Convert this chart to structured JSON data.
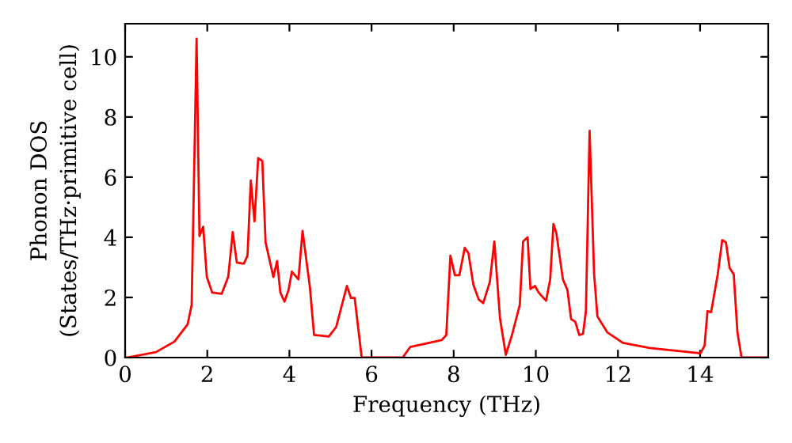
{
  "chart_data": {
    "type": "line",
    "xlabel": "Frequency (THz)",
    "ylabel": "Phonon DOS\n(States/THz·primitive cell)",
    "x": [
      0.04,
      0.75,
      1.2,
      1.52,
      1.62,
      1.74,
      1.81,
      1.9,
      1.99,
      2.12,
      2.35,
      2.51,
      2.62,
      2.72,
      2.89,
      2.98,
      3.06,
      3.15,
      3.24,
      3.34,
      3.42,
      3.61,
      3.7,
      3.78,
      3.88,
      3.98,
      4.06,
      4.22,
      4.32,
      4.5,
      4.6,
      4.96,
      5.14,
      5.4,
      5.5,
      5.59,
      5.76,
      6.76,
      6.94,
      7.71,
      7.82,
      7.92,
      8.03,
      8.14,
      8.27,
      8.36,
      8.48,
      8.61,
      8.72,
      8.88,
      8.99,
      9.13,
      9.27,
      9.42,
      9.61,
      9.69,
      9.8,
      9.87,
      9.98,
      10.07,
      10.25,
      10.35,
      10.43,
      10.5,
      10.66,
      10.77,
      10.86,
      10.96,
      11.06,
      11.15,
      11.22,
      11.31,
      11.42,
      11.5,
      11.74,
      12.12,
      12.77,
      14.01,
      14.11,
      14.18,
      14.27,
      14.43,
      14.54,
      14.63,
      14.72,
      14.82,
      14.91,
      15.01,
      15.66
    ],
    "series": [
      {
        "color": "#ff0000",
        "values": [
          0,
          0.18,
          0.53,
          1.1,
          1.75,
          10.6,
          4.04,
          4.35,
          2.68,
          2.16,
          2.12,
          2.68,
          4.17,
          3.16,
          3.12,
          3.39,
          5.89,
          4.53,
          6.63,
          6.54,
          3.83,
          2.68,
          3.21,
          2.16,
          1.86,
          2.25,
          2.86,
          2.6,
          4.21,
          2.33,
          0.75,
          0.7,
          1.02,
          2.38,
          1.98,
          1.98,
          0,
          0,
          0.35,
          0.58,
          0.75,
          3.39,
          2.74,
          2.74,
          3.65,
          3.47,
          2.42,
          1.93,
          1.81,
          2.51,
          3.86,
          1.28,
          0.09,
          0.75,
          1.75,
          3.86,
          4.0,
          2.28,
          2.38,
          2.16,
          1.89,
          2.6,
          4.44,
          4.14,
          2.6,
          2.25,
          1.28,
          1.19,
          0.75,
          0.79,
          1.54,
          7.54,
          2.77,
          1.37,
          0.84,
          0.49,
          0.32,
          0.14,
          0.4,
          1.54,
          1.51,
          2.77,
          3.91,
          3.83,
          2.98,
          2.77,
          0.84,
          0,
          0
        ]
      }
    ],
    "xlim": [
      0,
      15.66
    ],
    "ylim": [
      0,
      11.1
    ],
    "xticks": [
      0,
      2,
      4,
      6,
      8,
      10,
      12,
      14
    ],
    "yticks": [
      0,
      2,
      4,
      6,
      8,
      10
    ],
    "grid": false,
    "legend": false,
    "marker": "none",
    "line_style": "solid"
  }
}
